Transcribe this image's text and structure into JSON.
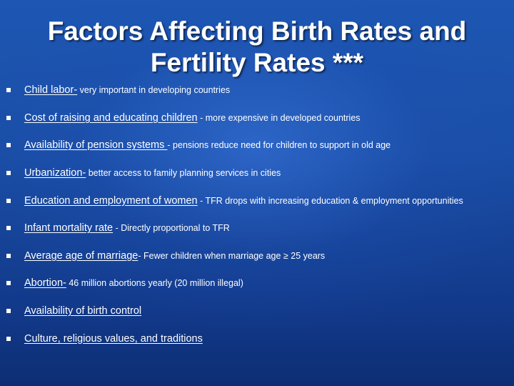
{
  "slide": {
    "title_line1": "Factors Affecting Birth Rates and",
    "title_line2": "Fertility Rates ***",
    "bullets": [
      {
        "term": "Child labor-",
        "desc": " very important in developing countries"
      },
      {
        "term": "Cost of raising and educating children",
        "desc": " - more expensive in developed countries"
      },
      {
        "term": "Availability of pension systems ",
        "desc": "- pensions reduce need for children to support in old age"
      },
      {
        "term": "Urbanization-",
        "desc": " better access to family planning services in cities"
      },
      {
        "term": "Education and employment of women",
        "desc": " - TFR drops with increasing education & employment opportunities"
      },
      {
        "term": "Infant mortality rate",
        "desc": " - Directly proportional to TFR"
      },
      {
        "term": "Average age of marriage",
        "desc": "- Fewer children when marriage age ≥ 25 years"
      },
      {
        "term": "Abortion-",
        "desc": " 46 million abortions yearly (20 million illegal)"
      },
      {
        "term": "Availability of birth control",
        "desc": ""
      },
      {
        "term": "Culture, religious values, and traditions",
        "desc": ""
      }
    ]
  }
}
